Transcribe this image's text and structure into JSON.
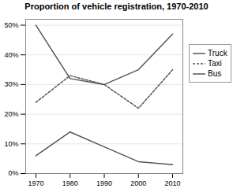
{
  "chart_data": {
    "type": "line",
    "title": "Proportion of vehicle registration, 1970-2010",
    "x": [
      1970,
      1980,
      1990,
      2000,
      2010
    ],
    "series": [
      {
        "name": "Truck",
        "color": "#555555",
        "line_style": "solid",
        "values": [
          50,
          32,
          30,
          35,
          47
        ]
      },
      {
        "name": "Taxi",
        "color": "#555555",
        "line_style": "dashed",
        "values": [
          24,
          33,
          30,
          22,
          35
        ]
      },
      {
        "name": "Bus",
        "color": "#555555",
        "line_style": "solid",
        "values": [
          6,
          14,
          9,
          4,
          3
        ]
      }
    ],
    "xlim": [
      1967,
      2013
    ],
    "xticks": [
      1970,
      1980,
      1990,
      2000,
      2010
    ],
    "ylim": [
      0,
      52
    ],
    "yticks": [
      {
        "value": 0,
        "label": "0%"
      },
      {
        "value": 10,
        "label": "10%"
      },
      {
        "value": 20,
        "label": "20%"
      },
      {
        "value": 30,
        "label": "30%"
      },
      {
        "value": 40,
        "label": "40%"
      },
      {
        "value": 50,
        "label": "50%"
      }
    ],
    "grid": true,
    "legend": "right"
  }
}
